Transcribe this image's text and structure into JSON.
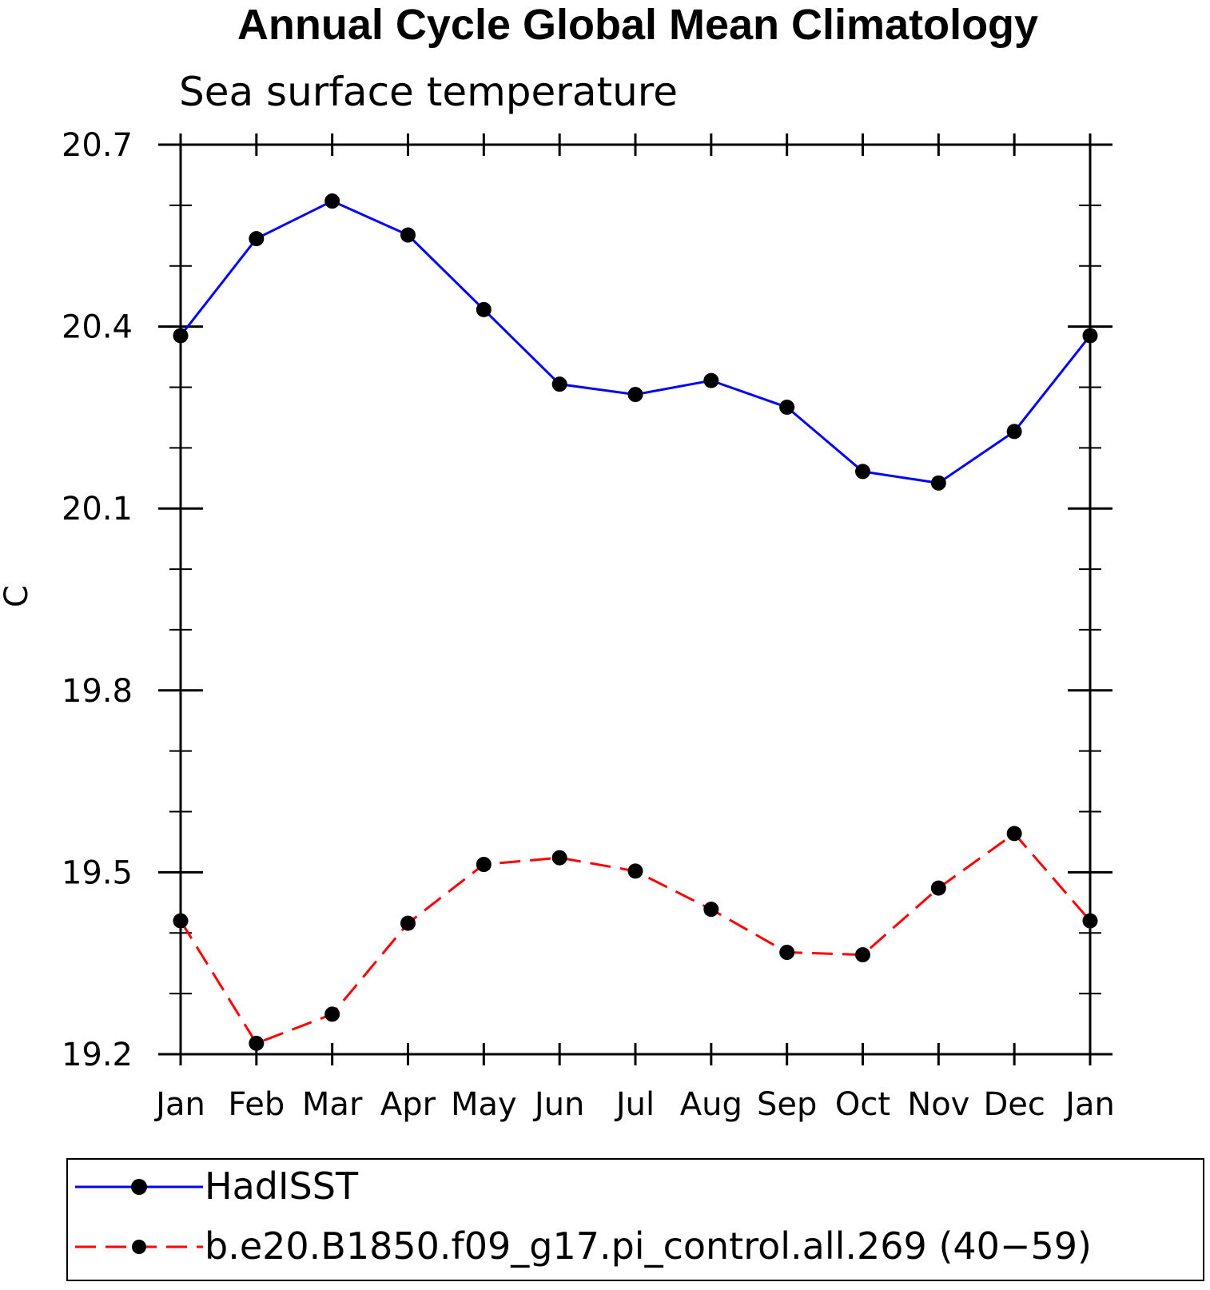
{
  "chart_data": {
    "type": "line",
    "title": "Annual Cycle Global Mean Climatology",
    "subtitle": "Sea surface temperature",
    "ylabel": "C",
    "xlabel": "",
    "categories": [
      "Jan",
      "Feb",
      "Mar",
      "Apr",
      "May",
      "Jun",
      "Jul",
      "Aug",
      "Sep",
      "Oct",
      "Nov",
      "Dec",
      "Jan"
    ],
    "ylim": [
      19.2,
      20.7
    ],
    "yticks": [
      "19.2",
      "19.5",
      "19.8",
      "20.1",
      "20.4",
      "20.7"
    ],
    "grid": false,
    "legend_position": "bottom",
    "series": [
      {
        "name": "HadISST",
        "color": "#0000ff",
        "line_style": "solid",
        "marker": "filled-circle",
        "values": [
          20.385,
          20.545,
          20.607,
          20.551,
          20.428,
          20.305,
          20.288,
          20.311,
          20.267,
          20.161,
          20.142,
          20.227,
          20.385
        ]
      },
      {
        "name": "b.e20.B1850.f09_g17.pi_control.all.269 (40−59)",
        "color": "#ff0000",
        "line_style": "dashed",
        "marker": "filled-circle",
        "values": [
          19.42,
          19.218,
          19.266,
          19.416,
          19.513,
          19.524,
          19.502,
          19.439,
          19.368,
          19.364,
          19.474,
          19.564,
          19.42
        ]
      }
    ]
  }
}
